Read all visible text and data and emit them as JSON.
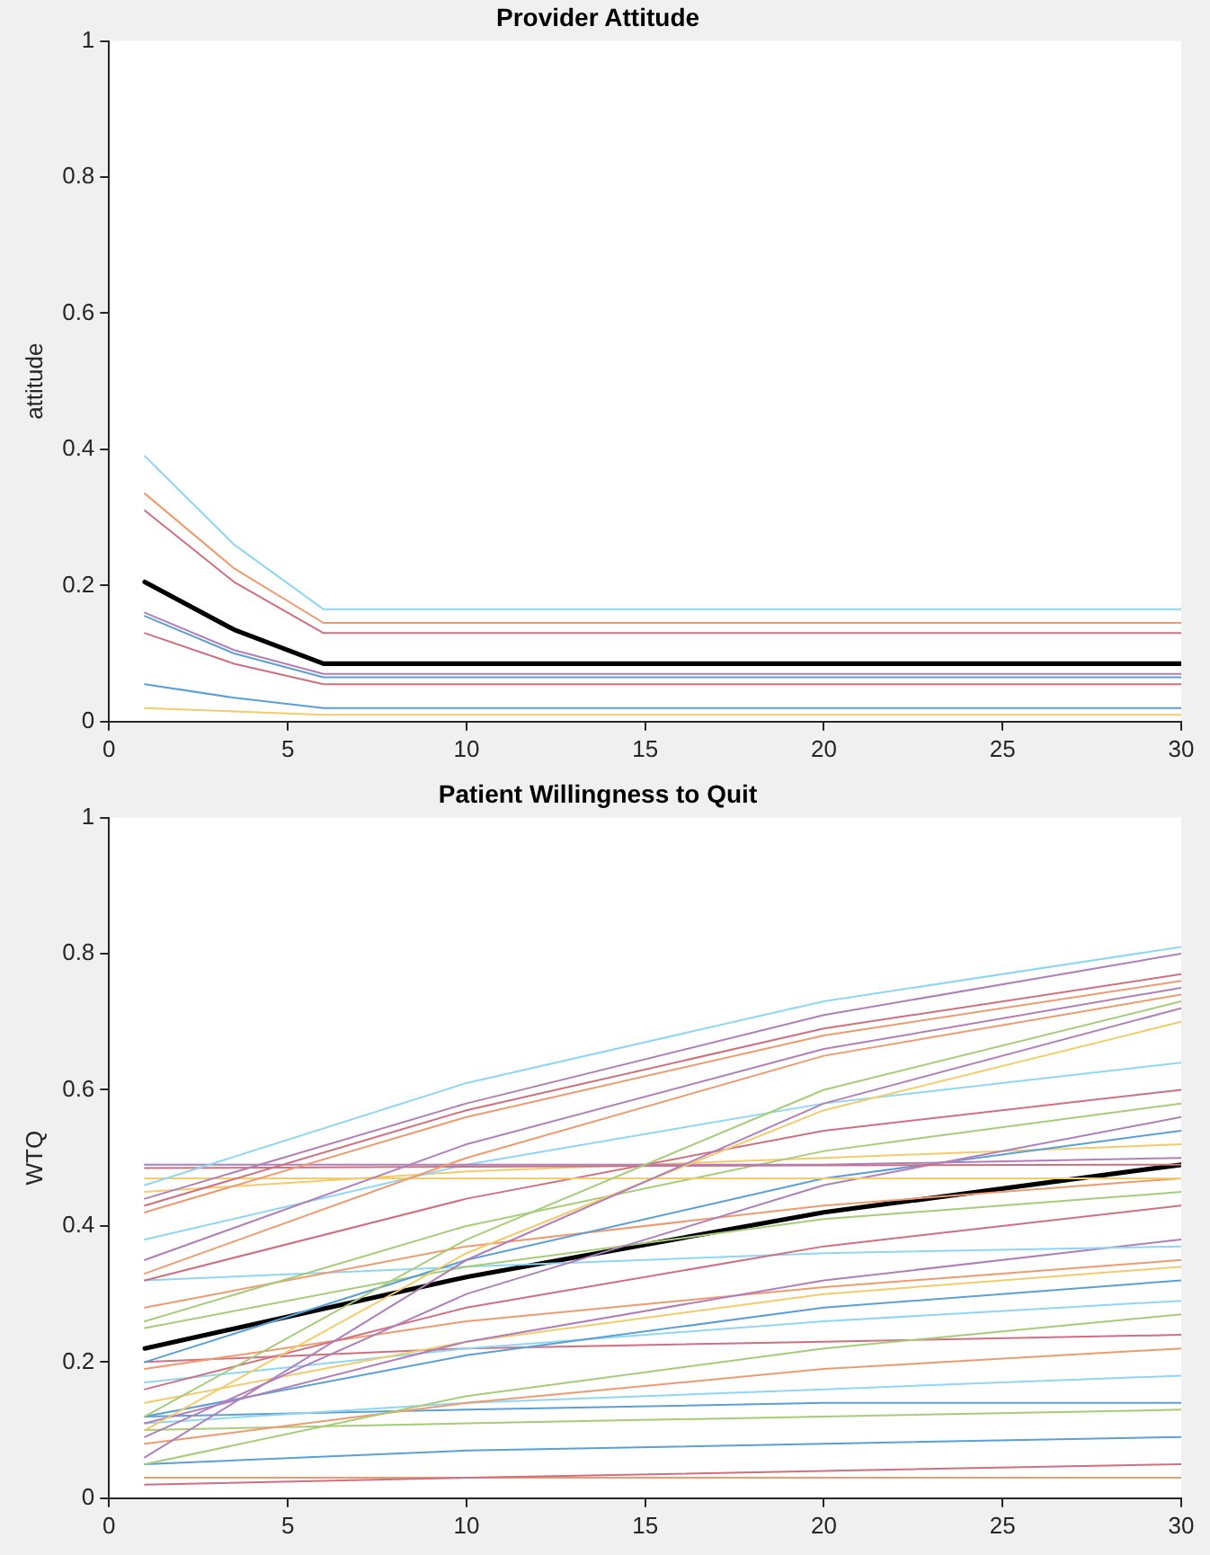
{
  "chart_data": [
    {
      "type": "line",
      "title": "Provider Attitude",
      "ylabel": "attitude",
      "xlim": [
        0,
        30
      ],
      "xticks": [
        0,
        5,
        10,
        15,
        20,
        25,
        30
      ],
      "ylim": [
        0,
        1
      ],
      "yticks": [
        0,
        0.2,
        0.4,
        0.6,
        0.8,
        1
      ],
      "grid": false,
      "legend": false,
      "marker": "none",
      "line_style": "solid",
      "x": [
        1,
        3.5,
        6,
        30
      ],
      "series": [
        {
          "color": "#8fd6f4",
          "values": [
            0.39,
            0.26,
            0.165,
            0.165
          ]
        },
        {
          "color": "#ef9a6e",
          "values": [
            0.335,
            0.225,
            0.145,
            0.145
          ]
        },
        {
          "color": "#cf6f80",
          "values": [
            0.31,
            0.205,
            0.13,
            0.13
          ]
        },
        {
          "color": "#b07fba",
          "values": [
            0.16,
            0.105,
            0.07,
            0.07
          ]
        },
        {
          "color": "#5a9fd6",
          "values": [
            0.155,
            0.1,
            0.065,
            0.065
          ]
        },
        {
          "color": "#cf6f80",
          "values": [
            0.13,
            0.085,
            0.055,
            0.055
          ]
        },
        {
          "color": "#5a9fd6",
          "values": [
            0.055,
            0.035,
            0.02,
            0.02
          ]
        },
        {
          "color": "#f2cb6a",
          "values": [
            0.02,
            0.015,
            0.01,
            0.01
          ]
        },
        {
          "color": "#000000",
          "values": [
            0.205,
            0.135,
            0.085,
            0.085
          ]
        }
      ]
    },
    {
      "type": "line",
      "title": "Patient Willingness to Quit",
      "ylabel": "WTQ",
      "xlim": [
        0,
        30
      ],
      "xticks": [
        0,
        5,
        10,
        15,
        20,
        25,
        30
      ],
      "ylim": [
        0,
        1
      ],
      "yticks": [
        0,
        0.2,
        0.4,
        0.6,
        0.8,
        1
      ],
      "grid": false,
      "legend": false,
      "marker": "none",
      "line_style": "solid",
      "x": [
        1,
        10,
        20,
        30
      ],
      "series": [
        {
          "color": "#8fd6f4",
          "values": [
            0.46,
            0.61,
            0.73,
            0.81
          ]
        },
        {
          "color": "#b07fba",
          "values": [
            0.44,
            0.58,
            0.71,
            0.8
          ]
        },
        {
          "color": "#cf6f80",
          "values": [
            0.43,
            0.57,
            0.69,
            0.77
          ]
        },
        {
          "color": "#ef9a6e",
          "values": [
            0.42,
            0.56,
            0.68,
            0.76
          ]
        },
        {
          "color": "#b07fba",
          "values": [
            0.35,
            0.52,
            0.66,
            0.75
          ]
        },
        {
          "color": "#ef9a6e",
          "values": [
            0.33,
            0.5,
            0.65,
            0.74
          ]
        },
        {
          "color": "#a6cc7a",
          "values": [
            0.12,
            0.38,
            0.6,
            0.73
          ]
        },
        {
          "color": "#b07fba",
          "values": [
            0.06,
            0.35,
            0.58,
            0.72
          ]
        },
        {
          "color": "#f2cb6a",
          "values": [
            0.1,
            0.36,
            0.57,
            0.7
          ]
        },
        {
          "color": "#b07fba",
          "values": [
            0.49,
            0.49,
            0.49,
            0.5
          ]
        },
        {
          "color": "#cf6f80",
          "values": [
            0.485,
            0.487,
            0.489,
            0.49
          ]
        },
        {
          "color": "#f2cb6a",
          "values": [
            0.47,
            0.47,
            0.47,
            0.47
          ]
        },
        {
          "color": "#8fd6f4",
          "values": [
            0.38,
            0.49,
            0.58,
            0.64
          ]
        },
        {
          "color": "#cf6f80",
          "values": [
            0.32,
            0.44,
            0.54,
            0.6
          ]
        },
        {
          "color": "#a6cc7a",
          "values": [
            0.26,
            0.4,
            0.51,
            0.58
          ]
        },
        {
          "color": "#b07fba",
          "values": [
            0.09,
            0.3,
            0.46,
            0.56
          ]
        },
        {
          "color": "#5a9fd6",
          "values": [
            0.2,
            0.35,
            0.47,
            0.54
          ]
        },
        {
          "color": "#f2cb6a",
          "values": [
            0.45,
            0.48,
            0.5,
            0.52
          ]
        },
        {
          "color": "#ef9a6e",
          "values": [
            0.28,
            0.37,
            0.43,
            0.47
          ]
        },
        {
          "color": "#a6cc7a",
          "values": [
            0.25,
            0.34,
            0.41,
            0.45
          ]
        },
        {
          "color": "#cf6f80",
          "values": [
            0.16,
            0.28,
            0.37,
            0.43
          ]
        },
        {
          "color": "#8fd6f4",
          "values": [
            0.32,
            0.34,
            0.36,
            0.37
          ]
        },
        {
          "color": "#b07fba",
          "values": [
            0.11,
            0.23,
            0.32,
            0.38
          ]
        },
        {
          "color": "#ef9a6e",
          "values": [
            0.19,
            0.26,
            0.31,
            0.35
          ]
        },
        {
          "color": "#f2cb6a",
          "values": [
            0.14,
            0.23,
            0.3,
            0.34
          ]
        },
        {
          "color": "#5a9fd6",
          "values": [
            0.12,
            0.21,
            0.28,
            0.32
          ]
        },
        {
          "color": "#8fd6f4",
          "values": [
            0.17,
            0.22,
            0.26,
            0.29
          ]
        },
        {
          "color": "#a6cc7a",
          "values": [
            0.05,
            0.15,
            0.22,
            0.27
          ]
        },
        {
          "color": "#cf6f80",
          "values": [
            0.2,
            0.22,
            0.23,
            0.24
          ]
        },
        {
          "color": "#ef9a6e",
          "values": [
            0.08,
            0.14,
            0.19,
            0.22
          ]
        },
        {
          "color": "#8fd6f4",
          "values": [
            0.11,
            0.14,
            0.16,
            0.18
          ]
        },
        {
          "color": "#5a9fd6",
          "values": [
            0.12,
            0.13,
            0.14,
            0.14
          ]
        },
        {
          "color": "#a6cc7a",
          "values": [
            0.1,
            0.11,
            0.12,
            0.13
          ]
        },
        {
          "color": "#5a9fd6",
          "values": [
            0.05,
            0.07,
            0.08,
            0.09
          ]
        },
        {
          "color": "#cf6f80",
          "values": [
            0.02,
            0.03,
            0.04,
            0.05
          ]
        },
        {
          "color": "#ef9a6e",
          "values": [
            0.03,
            0.03,
            0.03,
            0.03
          ]
        },
        {
          "color": "#000000",
          "values": [
            0.22,
            0.325,
            0.42,
            0.49
          ]
        }
      ]
    }
  ]
}
